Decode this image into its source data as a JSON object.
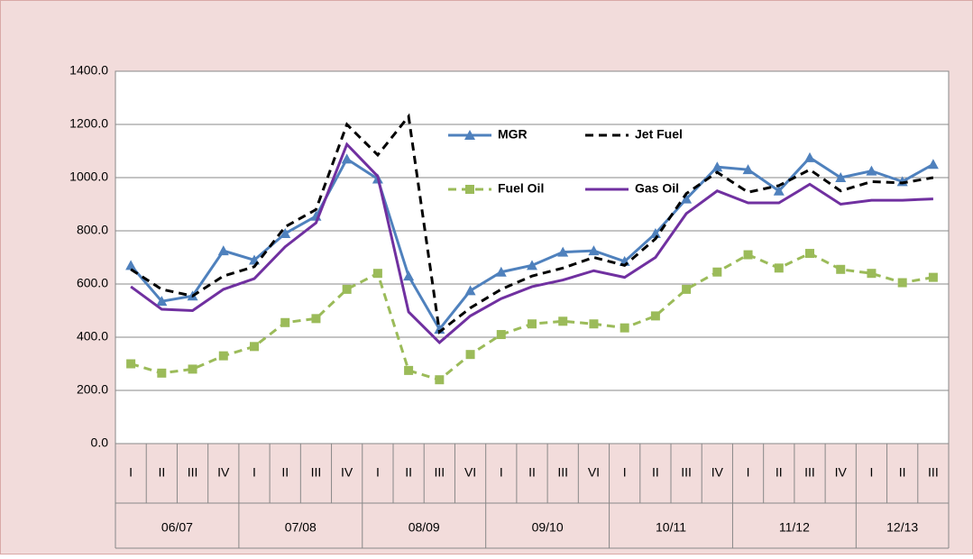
{
  "chart_data": {
    "type": "line",
    "groups": [
      {
        "name": "06/07",
        "categories": [
          "I",
          "II",
          "III",
          "IV"
        ]
      },
      {
        "name": "07/08",
        "categories": [
          "I",
          "II",
          "III",
          "IV"
        ]
      },
      {
        "name": "08/09",
        "categories": [
          "I",
          "II",
          "III",
          "VI"
        ]
      },
      {
        "name": "09/10",
        "categories": [
          "I",
          "II",
          "III",
          "VI"
        ]
      },
      {
        "name": "10/11",
        "categories": [
          "I",
          "II",
          "III",
          "IV"
        ]
      },
      {
        "name": "11/12",
        "categories": [
          "I",
          "II",
          "III",
          "IV"
        ]
      },
      {
        "name": "12/13",
        "categories": [
          "I",
          "II",
          "III"
        ]
      }
    ],
    "series": [
      {
        "name": "MGR",
        "color": "#4f81bd",
        "dashed": false,
        "marker": "triangle",
        "values": [
          670,
          535,
          555,
          725,
          690,
          790,
          855,
          1070,
          995,
          630,
          430,
          575,
          645,
          670,
          720,
          725,
          685,
          790,
          920,
          1040,
          1030,
          950,
          1075,
          1000,
          1025,
          985,
          1050
        ]
      },
      {
        "name": "Jet Fuel",
        "color": "#000000",
        "dashed": true,
        "marker": null,
        "values": [
          655,
          580,
          555,
          630,
          665,
          815,
          880,
          1200,
          1085,
          1230,
          420,
          510,
          580,
          630,
          660,
          700,
          670,
          770,
          940,
          1020,
          945,
          970,
          1030,
          950,
          985,
          980,
          1000
        ]
      },
      {
        "name": "Fuel Oil",
        "color": "#9bbb59",
        "dashed": true,
        "marker": "square",
        "values": [
          300,
          265,
          280,
          330,
          365,
          455,
          470,
          580,
          640,
          275,
          240,
          335,
          410,
          450,
          460,
          450,
          435,
          480,
          580,
          645,
          710,
          660,
          715,
          655,
          640,
          605,
          625
        ]
      },
      {
        "name": "Gas Oil",
        "color": "#7030a0",
        "dashed": false,
        "marker": null,
        "values": [
          590,
          505,
          500,
          580,
          620,
          740,
          830,
          1125,
          1005,
          495,
          380,
          480,
          545,
          590,
          615,
          650,
          625,
          700,
          865,
          950,
          905,
          905,
          975,
          900,
          915,
          915,
          920
        ]
      }
    ],
    "ylim": [
      0,
      1400
    ],
    "yticks": [
      {
        "value": 0,
        "label": "0.0"
      },
      {
        "value": 200,
        "label": "200.0"
      },
      {
        "value": 400,
        "label": "400.0"
      },
      {
        "value": 600,
        "label": "600.0"
      },
      {
        "value": 800,
        "label": "800.0"
      },
      {
        "value": 1000,
        "label": "1000.0"
      },
      {
        "value": 1200,
        "label": "1200.0"
      },
      {
        "value": 1400,
        "label": "1400.0"
      }
    ],
    "grid": true
  }
}
